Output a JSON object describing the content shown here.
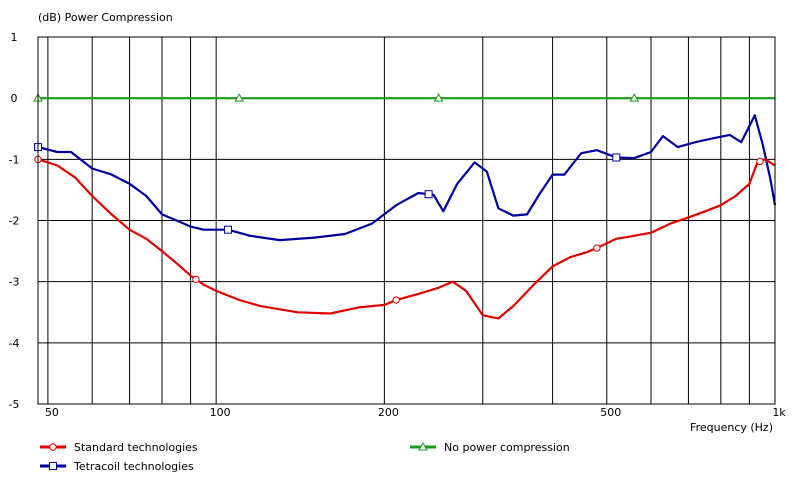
{
  "chart_data": {
    "type": "line",
    "title": "(dB)  Power Compression",
    "xlabel": "Frequency  (Hz)",
    "ylabel": "(dB)",
    "x_scale": "log",
    "xlim": [
      48,
      1000
    ],
    "ylim": [
      -5,
      1
    ],
    "y_ticks": [
      1,
      0,
      -1,
      -2,
      -3,
      -4,
      -5
    ],
    "x_tick_labels": [
      {
        "x": 50,
        "label": "50"
      },
      {
        "x": 100,
        "label": "100"
      },
      {
        "x": 200,
        "label": "200"
      },
      {
        "x": 500,
        "label": "500"
      },
      {
        "x": 1000,
        "label": "1k"
      }
    ],
    "x_gridlines": [
      50,
      60,
      70,
      80,
      90,
      100,
      200,
      300,
      400,
      500,
      600,
      700,
      800,
      900,
      1000
    ],
    "grid": true,
    "legend_position": "bottom",
    "series": [
      {
        "name": "Standard technologies",
        "color": "#e00000",
        "marker": "circle",
        "points": [
          [
            48,
            -1.0
          ],
          [
            52,
            -1.1
          ],
          [
            56,
            -1.3
          ],
          [
            60,
            -1.6
          ],
          [
            65,
            -1.9
          ],
          [
            70,
            -2.15
          ],
          [
            75,
            -2.3
          ],
          [
            80,
            -2.5
          ],
          [
            85,
            -2.7
          ],
          [
            90,
            -2.9
          ],
          [
            95,
            -3.05
          ],
          [
            100,
            -3.15
          ],
          [
            110,
            -3.3
          ],
          [
            120,
            -3.4
          ],
          [
            140,
            -3.5
          ],
          [
            160,
            -3.52
          ],
          [
            180,
            -3.42
          ],
          [
            200,
            -3.38
          ],
          [
            210,
            -3.3
          ],
          [
            230,
            -3.2
          ],
          [
            250,
            -3.1
          ],
          [
            265,
            -3.0
          ],
          [
            280,
            -3.15
          ],
          [
            300,
            -3.55
          ],
          [
            320,
            -3.6
          ],
          [
            340,
            -3.4
          ],
          [
            370,
            -3.05
          ],
          [
            400,
            -2.75
          ],
          [
            430,
            -2.6
          ],
          [
            460,
            -2.52
          ],
          [
            480,
            -2.45
          ],
          [
            520,
            -2.3
          ],
          [
            560,
            -2.25
          ],
          [
            600,
            -2.2
          ],
          [
            650,
            -2.05
          ],
          [
            700,
            -1.95
          ],
          [
            750,
            -1.85
          ],
          [
            800,
            -1.75
          ],
          [
            850,
            -1.6
          ],
          [
            900,
            -1.4
          ],
          [
            930,
            -1.05
          ],
          [
            960,
            -1.0
          ],
          [
            1000,
            -1.1
          ]
        ],
        "marker_x": [
          48,
          92,
          210,
          480,
          940
        ]
      },
      {
        "name": "Tetracoil technologies",
        "color": "#0000a0",
        "marker": "square",
        "points": [
          [
            48,
            -0.8
          ],
          [
            52,
            -0.88
          ],
          [
            55,
            -0.88
          ],
          [
            60,
            -1.15
          ],
          [
            65,
            -1.25
          ],
          [
            70,
            -1.4
          ],
          [
            75,
            -1.6
          ],
          [
            80,
            -1.9
          ],
          [
            85,
            -2.0
          ],
          [
            90,
            -2.1
          ],
          [
            95,
            -2.15
          ],
          [
            100,
            -2.15
          ],
          [
            105,
            -2.15
          ],
          [
            115,
            -2.25
          ],
          [
            130,
            -2.32
          ],
          [
            150,
            -2.28
          ],
          [
            170,
            -2.22
          ],
          [
            190,
            -2.05
          ],
          [
            210,
            -1.75
          ],
          [
            230,
            -1.55
          ],
          [
            245,
            -1.58
          ],
          [
            255,
            -1.85
          ],
          [
            270,
            -1.4
          ],
          [
            290,
            -1.05
          ],
          [
            305,
            -1.2
          ],
          [
            320,
            -1.8
          ],
          [
            340,
            -1.92
          ],
          [
            360,
            -1.9
          ],
          [
            380,
            -1.55
          ],
          [
            400,
            -1.25
          ],
          [
            420,
            -1.25
          ],
          [
            450,
            -0.9
          ],
          [
            480,
            -0.85
          ],
          [
            520,
            -0.97
          ],
          [
            560,
            -0.98
          ],
          [
            600,
            -0.88
          ],
          [
            630,
            -0.62
          ],
          [
            670,
            -0.8
          ],
          [
            720,
            -0.72
          ],
          [
            780,
            -0.65
          ],
          [
            830,
            -0.6
          ],
          [
            870,
            -0.72
          ],
          [
            920,
            -0.28
          ],
          [
            950,
            -0.75
          ],
          [
            980,
            -1.3
          ],
          [
            1000,
            -1.75
          ]
        ],
        "marker_x": [
          48,
          105,
          240,
          520
        ]
      },
      {
        "name": "No power compression",
        "color": "#1a9a1a",
        "marker": "triangle",
        "points": [
          [
            48,
            0
          ],
          [
            1000,
            0
          ]
        ],
        "marker_x": [
          48,
          110,
          250,
          560
        ]
      }
    ]
  }
}
